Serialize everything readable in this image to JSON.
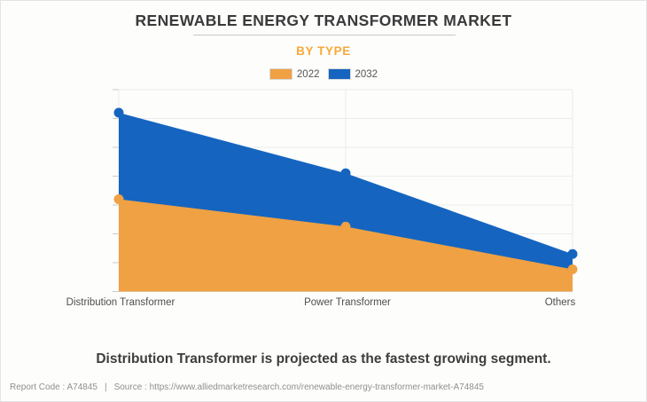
{
  "header": {
    "title": "RENEWABLE ENERGY TRANSFORMER MARKET",
    "subtitle": "BY TYPE"
  },
  "chart_data": {
    "type": "area",
    "categories": [
      "Distribution Transformer",
      "Power Transformer",
      "Others"
    ],
    "series": [
      {
        "name": "2022",
        "color": "#efa143",
        "values": [
          3.2,
          2.25,
          0.77
        ]
      },
      {
        "name": "2032",
        "color": "#1565c0",
        "values": [
          6.2,
          4.1,
          1.3
        ]
      }
    ],
    "title": "RENEWABLE ENERGY TRANSFORMER MARKET",
    "subtitle": "BY TYPE",
    "xlabel": "",
    "ylabel": "",
    "ylim": [
      0,
      7
    ],
    "y_axis_labels_visible": false,
    "grid": true,
    "legend_position": "top",
    "draw_order_note": "2032 area drawn behind, 2022 area in front",
    "marker_radius": 5.5
  },
  "annotation": "Distribution Transformer is projected as the fastest growing segment.",
  "footer": {
    "report_code": "Report Code : A74845",
    "separator": "|",
    "source": "Source : https://www.alliedmarketresearch.com/renewable-energy-transformer-market-A74845"
  }
}
